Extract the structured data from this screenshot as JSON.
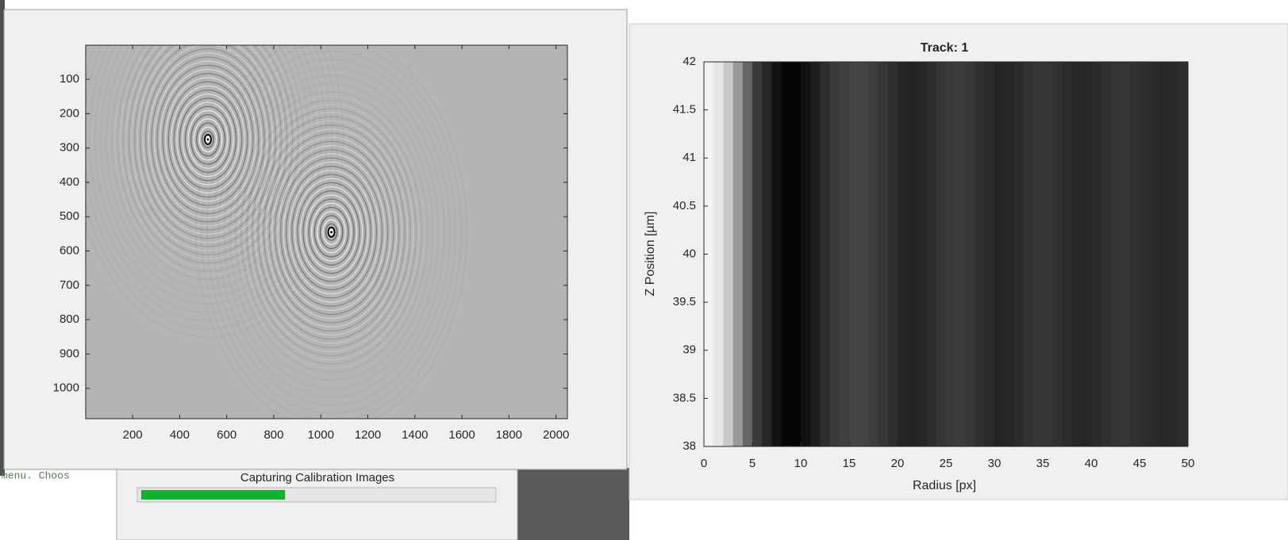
{
  "console_text": "menu.  Choos",
  "image_figure": {
    "type": "image",
    "xlim": [
      0.5,
      2048.5
    ],
    "ylim": [
      0.5,
      1088.5
    ],
    "y_reversed": true,
    "xticks": [
      200,
      400,
      600,
      800,
      1000,
      1200,
      1400,
      1600,
      1800,
      2000
    ],
    "yticks": [
      100,
      200,
      300,
      400,
      500,
      600,
      700,
      800,
      900,
      1000
    ],
    "background": "#b4b4b4",
    "spots": [
      {
        "x": 520,
        "y": 275
      },
      {
        "x": 1045,
        "y": 545
      }
    ]
  },
  "progress_dialog": {
    "title": "Capturing Calibration Images",
    "progress": 41,
    "color": "#14b030"
  },
  "profile_figure": {
    "type": "heatmap",
    "title": "Track: 1",
    "x_label": "Radius [px]",
    "y_label": "Z Position [µm]",
    "xlim": [
      0,
      50
    ],
    "ylim": [
      38,
      42
    ],
    "xticks": [
      0,
      5,
      10,
      15,
      20,
      25,
      30,
      35,
      40,
      45,
      50
    ],
    "yticks": [
      38,
      38.5,
      39,
      39.5,
      40,
      40.5,
      41,
      41.5,
      42
    ],
    "column_colors": [
      "#f2f2f2",
      "#e6e6e6",
      "#c8c8c8",
      "#999999",
      "#666666",
      "#3a3a3a",
      "#262626",
      "#111111",
      "#050505",
      "#050505",
      "#111111",
      "#1e1e1e",
      "#2e2e2e",
      "#3a3a3a",
      "#404040",
      "#444444",
      "#444444",
      "#3e3e3e",
      "#363636",
      "#2e2e2e",
      "#262626",
      "#222222",
      "#262626",
      "#2e2e2e",
      "#363636",
      "#3a3a3a",
      "#3c3c3c",
      "#383838",
      "#303030",
      "#2a2a2a",
      "#242424",
      "#262626",
      "#2c2c2c",
      "#323232",
      "#363636",
      "#363636",
      "#323232",
      "#2c2c2c",
      "#282828",
      "#262626",
      "#2a2a2a",
      "#303030",
      "#343434",
      "#363636",
      "#323232",
      "#2e2e2e",
      "#2a2a2a",
      "#282828",
      "#2a2a2a",
      "#2e2e2e"
    ]
  }
}
